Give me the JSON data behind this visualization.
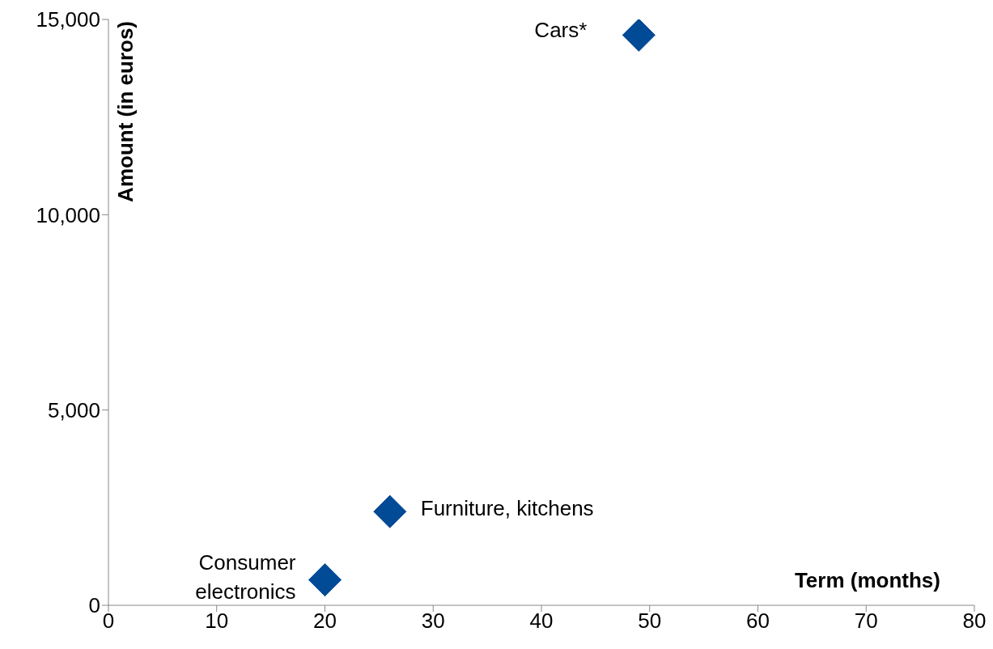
{
  "chart_data": {
    "type": "scatter",
    "xlabel": "Term (months)",
    "ylabel": "Amount (in euros)",
    "x": [
      20,
      26,
      49
    ],
    "values": [
      650,
      2400,
      14600
    ],
    "color": "#004a96",
    "marker": "diamond",
    "xlim": [
      0,
      80
    ],
    "xticks": [
      0,
      10,
      20,
      30,
      40,
      50,
      60,
      70,
      80
    ],
    "ylim": [
      0,
      15000
    ],
    "yticks": [
      0,
      {
        "value": 5000,
        "label": "5,000"
      },
      {
        "value": 10000,
        "label": "10,000"
      },
      {
        "value": 15000,
        "label": "15,000"
      }
    ],
    "grid": false,
    "legend": false,
    "annotations": [
      {
        "text": "Consumer electronics",
        "x": 20,
        "y": 650
      },
      {
        "text": "Furniture, kitchens",
        "x": 26,
        "y": 2400
      },
      {
        "text": "Cars*",
        "x": 49,
        "y": 14600
      }
    ]
  }
}
